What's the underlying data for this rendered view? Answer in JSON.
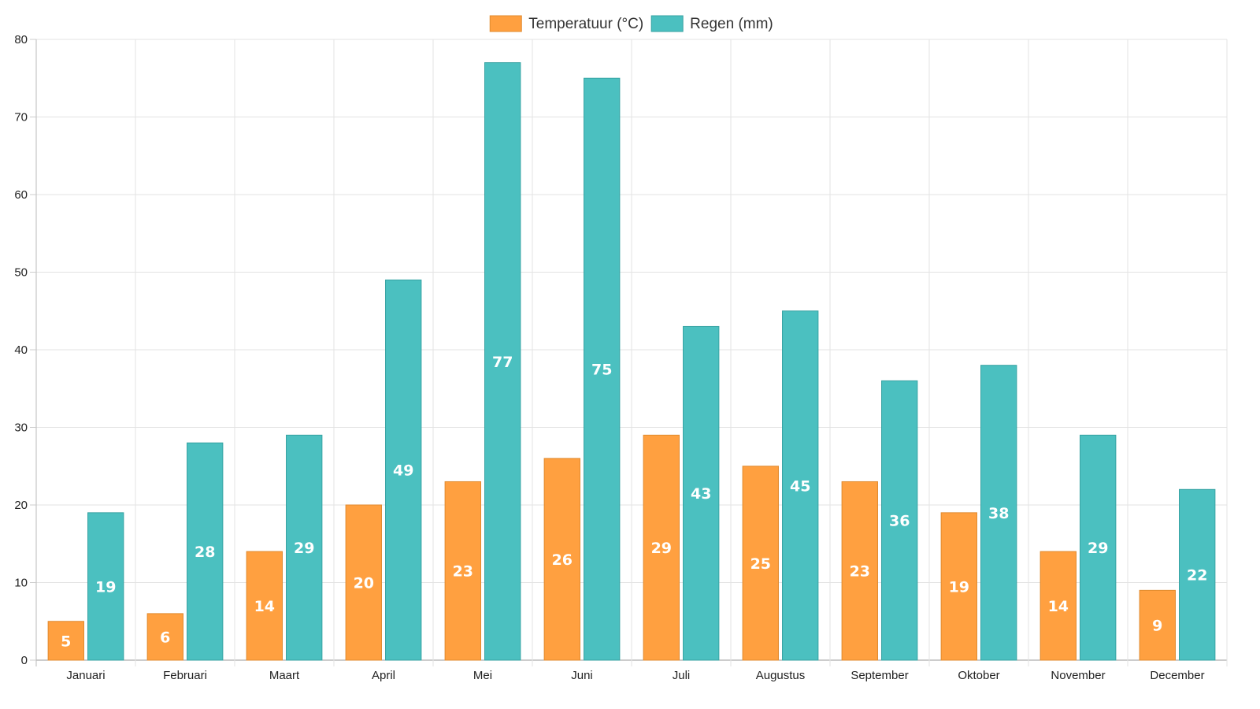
{
  "chart_data": {
    "type": "bar",
    "categories": [
      "Januari",
      "Februari",
      "Maart",
      "April",
      "Mei",
      "Juni",
      "Juli",
      "Augustus",
      "September",
      "Oktober",
      "November",
      "December"
    ],
    "series": [
      {
        "name": "Temperatuur (°C)",
        "color": "#FFA040",
        "border": "#E08A2E",
        "values": [
          5,
          6,
          14,
          20,
          23,
          26,
          29,
          25,
          23,
          19,
          14,
          9
        ]
      },
      {
        "name": "Regen (mm)",
        "color": "#4BC0C0",
        "border": "#36A2A2",
        "values": [
          19,
          28,
          29,
          49,
          77,
          75,
          43,
          45,
          36,
          38,
          29,
          22
        ]
      }
    ],
    "ylim": [
      0,
      80
    ],
    "yticks": [
      0,
      10,
      20,
      30,
      40,
      50,
      60,
      70,
      80
    ],
    "grid": true,
    "legend": "top-center",
    "data_labels": true
  }
}
